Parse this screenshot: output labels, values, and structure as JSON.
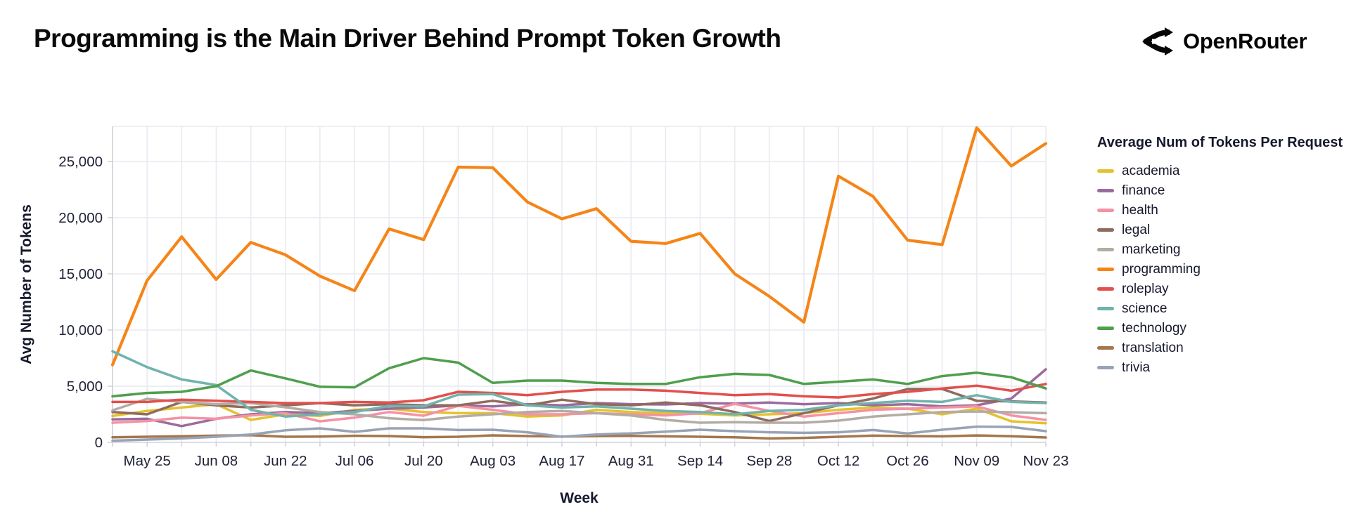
{
  "header": {
    "title": "Programming is the Main Driver Behind Prompt Token Growth",
    "brand": "OpenRouter"
  },
  "legend": {
    "title": "Average Num of Tokens Per Request"
  },
  "colors": {
    "grid": "#e9e9f1",
    "axis": "#d2d2dd",
    "tick_text": "#212338",
    "axis_title_text": "#16182c"
  },
  "chart_data": {
    "type": "line",
    "title": "Programming is the Main Driver Behind Prompt Token Growth",
    "xlabel": "Week",
    "ylabel": "Avg Number of Tokens",
    "legend_title": "Average Num of Tokens Per Request",
    "legend_position": "right",
    "grid": true,
    "ylim": [
      0,
      28125
    ],
    "y_ticks": [
      0,
      5000,
      10000,
      15000,
      20000,
      25000
    ],
    "y_tick_labels": [
      "0",
      "5,000",
      "10,000",
      "15,000",
      "20,000",
      "25,000"
    ],
    "categories": [
      "May 18",
      "May 25",
      "Jun 01",
      "Jun 08",
      "Jun 15",
      "Jun 22",
      "Jun 29",
      "Jul 06",
      "Jul 13",
      "Jul 20",
      "Jul 27",
      "Aug 03",
      "Aug 10",
      "Aug 17",
      "Aug 24",
      "Aug 31",
      "Sep 07",
      "Sep 14",
      "Sep 21",
      "Sep 28",
      "Oct 05",
      "Oct 12",
      "Oct 19",
      "Oct 26",
      "Nov 02",
      "Nov 09",
      "Nov 16",
      "Nov 23"
    ],
    "x_labeled_every": 2,
    "x_label_start_index": 1,
    "series": [
      {
        "name": "academia",
        "color": "#e5c22d",
        "values": [
          2350,
          2800,
          3100,
          3400,
          2000,
          2500,
          2350,
          2900,
          3000,
          2700,
          2600,
          2600,
          2300,
          2400,
          2900,
          2700,
          2600,
          2550,
          2400,
          2500,
          2600,
          2900,
          3100,
          3000,
          2500,
          3000,
          1875,
          1700
        ]
      },
      {
        "name": "finance",
        "color": "#9c6b9c",
        "values": [
          2050,
          2100,
          1450,
          2100,
          2500,
          2700,
          2600,
          2800,
          3000,
          3100,
          3300,
          3200,
          3400,
          3300,
          3500,
          3400,
          3375,
          3500,
          3450,
          3550,
          3400,
          3500,
          3300,
          3400,
          3200,
          3300,
          3900,
          6500
        ]
      },
      {
        "name": "health",
        "color": "#f492a4",
        "values": [
          1750,
          1900,
          2200,
          2100,
          2400,
          2600,
          1875,
          2200,
          2700,
          2375,
          3250,
          2900,
          2500,
          2500,
          2600,
          2500,
          2400,
          2600,
          3430,
          2800,
          2300,
          2600,
          2900,
          3000,
          3100,
          3200,
          2400,
          2000
        ]
      },
      {
        "name": "legal",
        "color": "#8f6b5e",
        "values": [
          2700,
          2500,
          3600,
          3300,
          3100,
          3300,
          3500,
          3300,
          3400,
          3300,
          3300,
          3700,
          3300,
          3800,
          3400,
          3300,
          3550,
          3300,
          2700,
          1900,
          2600,
          3300,
          3900,
          4750,
          4750,
          3700,
          3650,
          3550
        ]
      },
      {
        "name": "marketing",
        "color": "#b3aca5",
        "values": [
          2850,
          3875,
          3600,
          3400,
          3500,
          3125,
          2700,
          2500,
          2150,
          1980,
          2300,
          2500,
          2700,
          2800,
          2600,
          2400,
          2000,
          1750,
          1800,
          1750,
          1750,
          1940,
          2300,
          2500,
          2700,
          2750,
          2680,
          2600
        ]
      },
      {
        "name": "programming",
        "color": "#f58518",
        "values": [
          6900,
          14400,
          18300,
          14500,
          17800,
          16700,
          14800,
          13500,
          19000,
          18050,
          24500,
          24450,
          21400,
          19900,
          20800,
          17900,
          17700,
          18600,
          15000,
          13000,
          10700,
          23700,
          21900,
          18000,
          17600,
          28000,
          24600,
          26600
        ]
      },
      {
        "name": "roleplay",
        "color": "#e2504d",
        "values": [
          3600,
          3600,
          3800,
          3700,
          3600,
          3500,
          3500,
          3600,
          3550,
          3750,
          4500,
          4400,
          4200,
          4500,
          4700,
          4700,
          4600,
          4400,
          4200,
          4300,
          4100,
          4000,
          4300,
          4500,
          4800,
          5050,
          4600,
          5200
        ]
      },
      {
        "name": "science",
        "color": "#6fb3ac",
        "values": [
          8100,
          6700,
          5600,
          5100,
          2900,
          2300,
          2500,
          2700,
          3250,
          3200,
          4250,
          4300,
          3300,
          3100,
          3200,
          3000,
          2800,
          2700,
          2500,
          2800,
          2900,
          3300,
          3500,
          3700,
          3600,
          4200,
          3600,
          3500
        ]
      },
      {
        "name": "technology",
        "color": "#4f9f4d",
        "values": [
          4100,
          4400,
          4500,
          5000,
          6400,
          5700,
          4950,
          4900,
          6600,
          7500,
          7100,
          5300,
          5500,
          5500,
          5300,
          5200,
          5200,
          5800,
          6100,
          6000,
          5200,
          5400,
          5600,
          5200,
          5900,
          6200,
          5800,
          4800
        ]
      },
      {
        "name": "translation",
        "color": "#a3774d",
        "values": [
          450,
          500,
          550,
          600,
          640,
          500,
          520,
          590,
          560,
          460,
          500,
          625,
          560,
          520,
          560,
          580,
          540,
          500,
          450,
          350,
          400,
          500,
          600,
          560,
          540,
          620,
          550,
          440
        ]
      },
      {
        "name": "trivia",
        "color": "#99a3b6",
        "values": [
          150,
          250,
          350,
          500,
          700,
          1075,
          1250,
          940,
          1250,
          1250,
          1100,
          1125,
          900,
          500,
          700,
          800,
          950,
          1125,
          1000,
          900,
          850,
          900,
          1100,
          800,
          1125,
          1400,
          1375,
          1000
        ]
      }
    ]
  }
}
